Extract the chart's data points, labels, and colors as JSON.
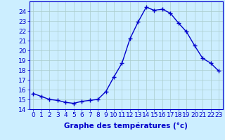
{
  "hours": [
    0,
    1,
    2,
    3,
    4,
    5,
    6,
    7,
    8,
    9,
    10,
    11,
    12,
    13,
    14,
    15,
    16,
    17,
    18,
    19,
    20,
    21,
    22,
    23
  ],
  "temperatures": [
    15.6,
    15.3,
    15.0,
    14.9,
    14.7,
    14.6,
    14.8,
    14.9,
    15.0,
    15.8,
    17.3,
    18.7,
    21.2,
    22.9,
    24.4,
    24.1,
    24.2,
    23.8,
    22.8,
    21.9,
    20.5,
    19.2,
    18.7,
    17.9
  ],
  "line_color": "#0000cc",
  "marker": "+",
  "marker_size": 4,
  "marker_linewidth": 1.0,
  "bg_color": "#cceeff",
  "grid_color": "#aacccc",
  "axis_label_color": "#0000cc",
  "xlabel": "Graphe des températures (°c)",
  "ylim": [
    14,
    25
  ],
  "yticks": [
    14,
    15,
    16,
    17,
    18,
    19,
    20,
    21,
    22,
    23,
    24
  ],
  "xlim": [
    -0.5,
    23.5
  ],
  "xticks": [
    0,
    1,
    2,
    3,
    4,
    5,
    6,
    7,
    8,
    9,
    10,
    11,
    12,
    13,
    14,
    15,
    16,
    17,
    18,
    19,
    20,
    21,
    22,
    23
  ],
  "xlabel_fontsize": 7.5,
  "tick_fontsize": 6.5,
  "tick_color": "#0000cc",
  "spine_color": "#0000cc",
  "line_width": 1.0
}
